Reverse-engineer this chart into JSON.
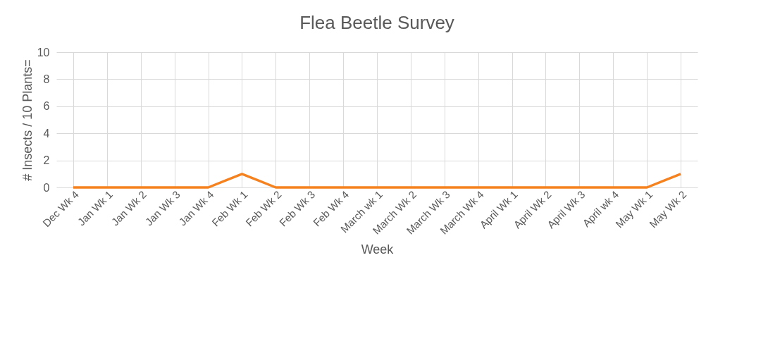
{
  "chart_data": {
    "type": "line",
    "title": "Flea Beetle Survey",
    "xlabel": "Week",
    "ylabel": "# Insects / 10 Plants=",
    "categories": [
      "Dec Wk 4",
      "Jan Wk 1",
      "Jan Wk 2",
      "Jan Wk 3",
      "Jan Wk 4",
      "Feb Wk 1",
      "Feb Wk 2",
      "Feb Wk 3",
      "Feb Wk 4",
      "March wk 1",
      "March Wk 2",
      "March Wk 3",
      "March Wk 4",
      "April Wk 1",
      "April Wk 2",
      "April Wk 3",
      "April wk 4",
      "May Wk 1",
      "May Wk 2"
    ],
    "series": [
      {
        "color": "#f5821f",
        "values": [
          0,
          0,
          0,
          0,
          0,
          1,
          0,
          0,
          0,
          0,
          0,
          0,
          0,
          0,
          0,
          0,
          0,
          0,
          1
        ]
      }
    ],
    "ylim": [
      0,
      10
    ],
    "yticks": [
      0,
      2,
      4,
      6,
      8,
      10
    ],
    "grid": true,
    "marker": "none",
    "line_style": "solid"
  }
}
